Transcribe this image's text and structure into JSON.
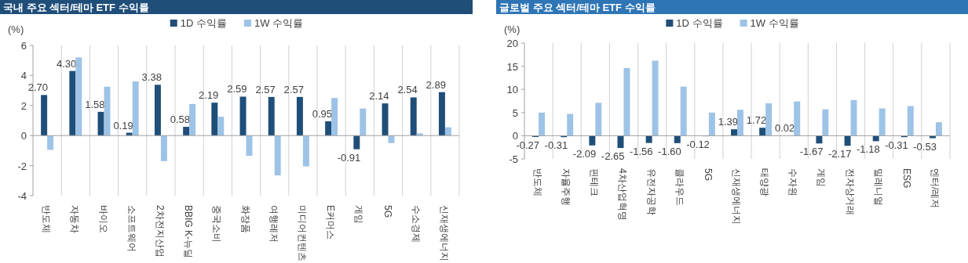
{
  "chart_data": [
    {
      "type": "bar",
      "title": "국내 주요 섹터/테마 ETF 수익률",
      "ylabel": "(%)",
      "categories": [
        "반도체",
        "자동차",
        "바이오",
        "소프트웨어",
        "2차전지산업",
        "BBIG K-뉴딜",
        "중국소비",
        "화장품",
        "여행레저",
        "미디어컨텐츠",
        "E커머스",
        "게임",
        "5G",
        "수소경제",
        "신재생에너지"
      ],
      "series": [
        {
          "name": "1D 수익률",
          "color": "#1f4e79",
          "values": [
            2.7,
            4.3,
            1.58,
            0.19,
            3.38,
            0.58,
            2.19,
            2.59,
            2.57,
            2.57,
            0.95,
            -0.91,
            2.14,
            2.54,
            2.89
          ],
          "value_labels": [
            "2.70",
            "4.30",
            "1.58",
            "0.19",
            "3.38",
            "0.58",
            "2.19",
            "2.59",
            "2.57",
            "2.57",
            "0.95",
            "-0.91",
            "2.14",
            "2.54",
            "2.89"
          ]
        },
        {
          "name": "1W 수익률",
          "color": "#9dc3e6",
          "values": [
            -0.95,
            5.2,
            3.25,
            3.6,
            -1.7,
            2.1,
            1.25,
            -1.35,
            -2.65,
            -2.05,
            2.5,
            1.8,
            -0.5,
            0.15,
            0.55
          ]
        }
      ],
      "ylim": [
        -4,
        6
      ],
      "yticks": [
        -4,
        -2,
        0,
        2,
        4,
        6
      ],
      "grid": "x",
      "legend": "top"
    },
    {
      "type": "bar",
      "title": "글로벌 주요 섹터/테마 ETF 수익률",
      "ylabel": "(%)",
      "categories": [
        "반도체",
        "자율주행",
        "핀테크",
        "4차산업혁명",
        "유전자공학",
        "클라우드",
        "5G",
        "신재생에너지",
        "태양광",
        "수자원",
        "게임",
        "전자상거래",
        "밀레니얼",
        "ESG",
        "엔터/레저"
      ],
      "series": [
        {
          "name": "1D 수익률",
          "color": "#1f4e79",
          "values": [
            -0.27,
            -0.31,
            -2.09,
            -2.65,
            -1.56,
            -1.6,
            -0.12,
            1.39,
            1.72,
            0.02,
            -1.67,
            -2.17,
            -1.18,
            -0.31,
            -0.53
          ],
          "value_labels": [
            "-0.27",
            "-0.31",
            "-2.09",
            "-2.65",
            "-1.56",
            "-1.60",
            "-0.12",
            "1.39",
            "1.72",
            "0.02",
            "-1.67",
            "-2.17",
            "-1.18",
            "-0.31",
            "-0.53"
          ]
        },
        {
          "name": "1W 수익률",
          "color": "#9dc3e6",
          "values": [
            5.0,
            4.7,
            7.1,
            14.6,
            16.2,
            10.6,
            5.0,
            5.6,
            7.0,
            7.4,
            5.7,
            7.7,
            5.9,
            6.4,
            2.9
          ]
        }
      ],
      "ylim": [
        -5,
        20
      ],
      "yticks": [
        -5,
        0,
        5,
        10,
        15,
        20
      ],
      "grid": "x",
      "legend": "top"
    }
  ]
}
